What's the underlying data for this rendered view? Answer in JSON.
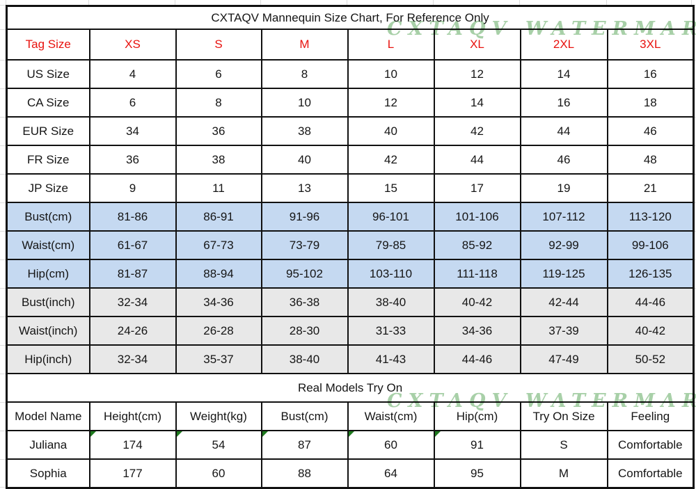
{
  "watermark_text": "CXTAQV WATERMARKS",
  "colors": {
    "header_red": "#e8120e",
    "cm_row_blue": "#c5d9f1",
    "inch_row_gray": "#e8e8e8",
    "watermark_green": "#9fcb9f",
    "flag_green": "#1e7a1e"
  },
  "chart_data": [
    {
      "type": "table",
      "title": "CXTAQV Mannequin Size Chart, For Reference Only",
      "columns": [
        "Tag Size",
        "XS",
        "S",
        "M",
        "L",
        "XL",
        "2XL",
        "3XL"
      ],
      "rows": [
        [
          "US Size",
          "4",
          "6",
          "8",
          "10",
          "12",
          "14",
          "16"
        ],
        [
          "CA Size",
          "6",
          "8",
          "10",
          "12",
          "14",
          "16",
          "18"
        ],
        [
          "EUR Size",
          "34",
          "36",
          "38",
          "40",
          "42",
          "44",
          "46"
        ],
        [
          "FR Size",
          "36",
          "38",
          "40",
          "42",
          "44",
          "46",
          "48"
        ],
        [
          "JP Size",
          "9",
          "11",
          "13",
          "15",
          "17",
          "19",
          "21"
        ],
        [
          "Bust(cm)",
          "81-86",
          "86-91",
          "91-96",
          "96-101",
          "101-106",
          "107-112",
          "113-120"
        ],
        [
          "Waist(cm)",
          "61-67",
          "67-73",
          "73-79",
          "79-85",
          "85-92",
          "92-99",
          "99-106"
        ],
        [
          "Hip(cm)",
          "81-87",
          "88-94",
          "95-102",
          "103-110",
          "111-118",
          "119-125",
          "126-135"
        ],
        [
          "Bust(inch)",
          "32-34",
          "34-36",
          "36-38",
          "38-40",
          "40-42",
          "42-44",
          "44-46"
        ],
        [
          "Waist(inch)",
          "24-26",
          "26-28",
          "28-30",
          "31-33",
          "34-36",
          "37-39",
          "40-42"
        ],
        [
          "Hip(inch)",
          "32-34",
          "35-37",
          "38-40",
          "41-43",
          "44-46",
          "47-49",
          "50-52"
        ]
      ]
    },
    {
      "type": "table",
      "title": "Real Models Try On",
      "columns": [
        "Model Name",
        "Height(cm)",
        "Weight(kg)",
        "Bust(cm)",
        "Waist(cm)",
        "Hip(cm)",
        "Try On Size",
        "Feeling"
      ],
      "rows": [
        [
          "Juliana",
          "174",
          "54",
          "87",
          "60",
          "91",
          "S",
          "Comfortable"
        ],
        [
          "Sophia",
          "177",
          "60",
          "88",
          "64",
          "95",
          "M",
          "Comfortable"
        ]
      ]
    }
  ]
}
